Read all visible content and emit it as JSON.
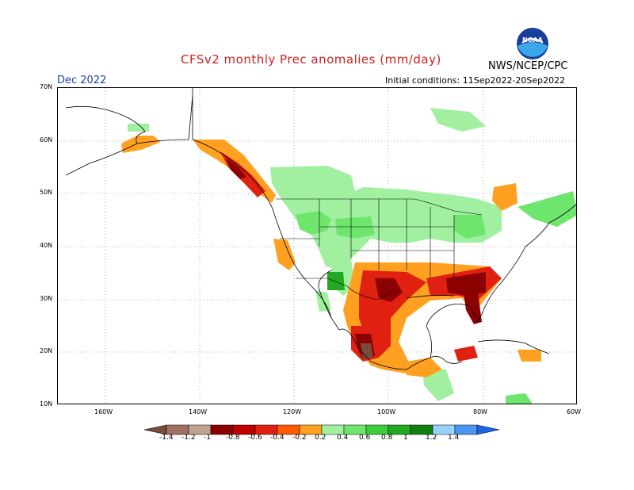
{
  "title": "CFSv2 monthly Prec anomalies (mm/day)",
  "valid_month": "Dec 2022",
  "initial_conditions": "Initial conditions: 11Sep2022-20Sep2022",
  "organization": "NWS/NCEP/CPC",
  "logo_text": "NOAA",
  "lat_labels": [
    "70N",
    "60N",
    "50N",
    "40N",
    "30N",
    "20N",
    "10N"
  ],
  "lon_labels": [
    "160W",
    "140W",
    "120W",
    "100W",
    "80W",
    "60W"
  ],
  "colorbar": {
    "labels": [
      "-1.4",
      "-1.2",
      "-1",
      "-0.8",
      "-0.6",
      "-0.4",
      "-0.2",
      "0.2",
      "0.4",
      "0.6",
      "0.8",
      "1",
      "1.2",
      "1.4"
    ],
    "colors": [
      "#7a4a3a",
      "#a07060",
      "#c0a090",
      "#8b0000",
      "#c00000",
      "#e02010",
      "#ff5a00",
      "#ffa020",
      "#a0f0a0",
      "#6ee66e",
      "#3ccc3c",
      "#22aa22",
      "#108010",
      "#96d2fa",
      "#4b96f0",
      "#1e64e6"
    ]
  },
  "colors": {
    "title": "#d02020",
    "month": "#1f3fb0",
    "dry_strong": "#8b0000",
    "dry_mid": "#e02010",
    "dry_weak": "#ffa020",
    "wet_weak": "#a0f0a0",
    "wet_mid": "#6ee66e",
    "wet_strong": "#22aa22"
  }
}
